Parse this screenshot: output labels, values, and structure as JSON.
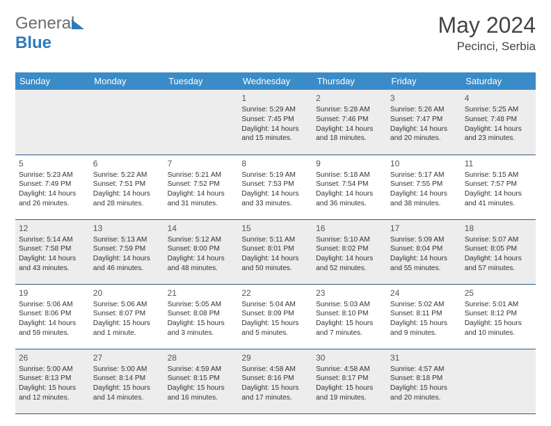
{
  "logo": {
    "part1": "General",
    "part2": "Blue"
  },
  "title": "May 2024",
  "location": "Pecinci, Serbia",
  "colors": {
    "header_bg": "#3b8bc8",
    "header_text": "#ffffff",
    "alt_row_bg": "#ededed",
    "row_border": "#2d5a82",
    "text": "#333333",
    "title_text": "#444444"
  },
  "day_headers": [
    "Sunday",
    "Monday",
    "Tuesday",
    "Wednesday",
    "Thursday",
    "Friday",
    "Saturday"
  ],
  "weeks": [
    [
      null,
      null,
      null,
      {
        "n": "1",
        "sr": "Sunrise: 5:29 AM",
        "ss": "Sunset: 7:45 PM",
        "dl1": "Daylight: 14 hours",
        "dl2": "and 15 minutes."
      },
      {
        "n": "2",
        "sr": "Sunrise: 5:28 AM",
        "ss": "Sunset: 7:46 PM",
        "dl1": "Daylight: 14 hours",
        "dl2": "and 18 minutes."
      },
      {
        "n": "3",
        "sr": "Sunrise: 5:26 AM",
        "ss": "Sunset: 7:47 PM",
        "dl1": "Daylight: 14 hours",
        "dl2": "and 20 minutes."
      },
      {
        "n": "4",
        "sr": "Sunrise: 5:25 AM",
        "ss": "Sunset: 7:48 PM",
        "dl1": "Daylight: 14 hours",
        "dl2": "and 23 minutes."
      }
    ],
    [
      {
        "n": "5",
        "sr": "Sunrise: 5:23 AM",
        "ss": "Sunset: 7:49 PM",
        "dl1": "Daylight: 14 hours",
        "dl2": "and 26 minutes."
      },
      {
        "n": "6",
        "sr": "Sunrise: 5:22 AM",
        "ss": "Sunset: 7:51 PM",
        "dl1": "Daylight: 14 hours",
        "dl2": "and 28 minutes."
      },
      {
        "n": "7",
        "sr": "Sunrise: 5:21 AM",
        "ss": "Sunset: 7:52 PM",
        "dl1": "Daylight: 14 hours",
        "dl2": "and 31 minutes."
      },
      {
        "n": "8",
        "sr": "Sunrise: 5:19 AM",
        "ss": "Sunset: 7:53 PM",
        "dl1": "Daylight: 14 hours",
        "dl2": "and 33 minutes."
      },
      {
        "n": "9",
        "sr": "Sunrise: 5:18 AM",
        "ss": "Sunset: 7:54 PM",
        "dl1": "Daylight: 14 hours",
        "dl2": "and 36 minutes."
      },
      {
        "n": "10",
        "sr": "Sunrise: 5:17 AM",
        "ss": "Sunset: 7:55 PM",
        "dl1": "Daylight: 14 hours",
        "dl2": "and 38 minutes."
      },
      {
        "n": "11",
        "sr": "Sunrise: 5:15 AM",
        "ss": "Sunset: 7:57 PM",
        "dl1": "Daylight: 14 hours",
        "dl2": "and 41 minutes."
      }
    ],
    [
      {
        "n": "12",
        "sr": "Sunrise: 5:14 AM",
        "ss": "Sunset: 7:58 PM",
        "dl1": "Daylight: 14 hours",
        "dl2": "and 43 minutes."
      },
      {
        "n": "13",
        "sr": "Sunrise: 5:13 AM",
        "ss": "Sunset: 7:59 PM",
        "dl1": "Daylight: 14 hours",
        "dl2": "and 46 minutes."
      },
      {
        "n": "14",
        "sr": "Sunrise: 5:12 AM",
        "ss": "Sunset: 8:00 PM",
        "dl1": "Daylight: 14 hours",
        "dl2": "and 48 minutes."
      },
      {
        "n": "15",
        "sr": "Sunrise: 5:11 AM",
        "ss": "Sunset: 8:01 PM",
        "dl1": "Daylight: 14 hours",
        "dl2": "and 50 minutes."
      },
      {
        "n": "16",
        "sr": "Sunrise: 5:10 AM",
        "ss": "Sunset: 8:02 PM",
        "dl1": "Daylight: 14 hours",
        "dl2": "and 52 minutes."
      },
      {
        "n": "17",
        "sr": "Sunrise: 5:09 AM",
        "ss": "Sunset: 8:04 PM",
        "dl1": "Daylight: 14 hours",
        "dl2": "and 55 minutes."
      },
      {
        "n": "18",
        "sr": "Sunrise: 5:07 AM",
        "ss": "Sunset: 8:05 PM",
        "dl1": "Daylight: 14 hours",
        "dl2": "and 57 minutes."
      }
    ],
    [
      {
        "n": "19",
        "sr": "Sunrise: 5:06 AM",
        "ss": "Sunset: 8:06 PM",
        "dl1": "Daylight: 14 hours",
        "dl2": "and 59 minutes."
      },
      {
        "n": "20",
        "sr": "Sunrise: 5:06 AM",
        "ss": "Sunset: 8:07 PM",
        "dl1": "Daylight: 15 hours",
        "dl2": "and 1 minute."
      },
      {
        "n": "21",
        "sr": "Sunrise: 5:05 AM",
        "ss": "Sunset: 8:08 PM",
        "dl1": "Daylight: 15 hours",
        "dl2": "and 3 minutes."
      },
      {
        "n": "22",
        "sr": "Sunrise: 5:04 AM",
        "ss": "Sunset: 8:09 PM",
        "dl1": "Daylight: 15 hours",
        "dl2": "and 5 minutes."
      },
      {
        "n": "23",
        "sr": "Sunrise: 5:03 AM",
        "ss": "Sunset: 8:10 PM",
        "dl1": "Daylight: 15 hours",
        "dl2": "and 7 minutes."
      },
      {
        "n": "24",
        "sr": "Sunrise: 5:02 AM",
        "ss": "Sunset: 8:11 PM",
        "dl1": "Daylight: 15 hours",
        "dl2": "and 9 minutes."
      },
      {
        "n": "25",
        "sr": "Sunrise: 5:01 AM",
        "ss": "Sunset: 8:12 PM",
        "dl1": "Daylight: 15 hours",
        "dl2": "and 10 minutes."
      }
    ],
    [
      {
        "n": "26",
        "sr": "Sunrise: 5:00 AM",
        "ss": "Sunset: 8:13 PM",
        "dl1": "Daylight: 15 hours",
        "dl2": "and 12 minutes."
      },
      {
        "n": "27",
        "sr": "Sunrise: 5:00 AM",
        "ss": "Sunset: 8:14 PM",
        "dl1": "Daylight: 15 hours",
        "dl2": "and 14 minutes."
      },
      {
        "n": "28",
        "sr": "Sunrise: 4:59 AM",
        "ss": "Sunset: 8:15 PM",
        "dl1": "Daylight: 15 hours",
        "dl2": "and 16 minutes."
      },
      {
        "n": "29",
        "sr": "Sunrise: 4:58 AM",
        "ss": "Sunset: 8:16 PM",
        "dl1": "Daylight: 15 hours",
        "dl2": "and 17 minutes."
      },
      {
        "n": "30",
        "sr": "Sunrise: 4:58 AM",
        "ss": "Sunset: 8:17 PM",
        "dl1": "Daylight: 15 hours",
        "dl2": "and 19 minutes."
      },
      {
        "n": "31",
        "sr": "Sunrise: 4:57 AM",
        "ss": "Sunset: 8:18 PM",
        "dl1": "Daylight: 15 hours",
        "dl2": "and 20 minutes."
      },
      null
    ]
  ]
}
